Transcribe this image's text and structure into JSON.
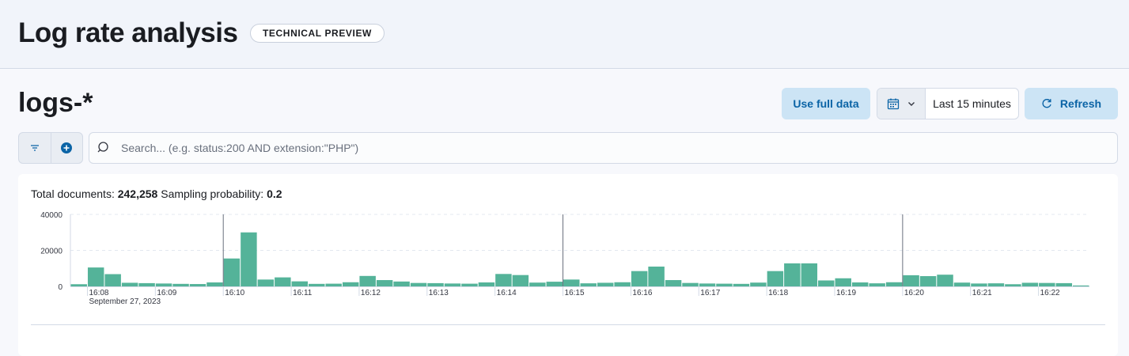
{
  "header": {
    "title": "Log rate analysis",
    "badge": "TECHNICAL PREVIEW"
  },
  "index_title": "logs-*",
  "toolbar": {
    "use_full_data_label": "Use full data",
    "date_range_label": "Last 15 minutes",
    "refresh_label": "Refresh",
    "calendar_icon": "calendar-icon",
    "refresh_icon": "refresh-icon"
  },
  "search": {
    "placeholder": "Search... (e.g. status:200 AND extension:\"PHP\")",
    "value": ""
  },
  "summary": {
    "total_label": "Total documents:",
    "total_value": "242,258",
    "sampling_label": "Sampling probability:",
    "sampling_value": "0.2"
  },
  "colors": {
    "bar": "#54b399",
    "accent": "#0b64a6",
    "button_bg": "#cce4f5"
  },
  "chart_data": {
    "type": "bar",
    "y_ticks": [
      "40000",
      "20000",
      "0"
    ],
    "ylim": [
      0,
      40000
    ],
    "x_tick_labels": [
      "16:08",
      "16:09",
      "16:10",
      "16:11",
      "16:12",
      "16:13",
      "16:14",
      "16:15",
      "16:16",
      "16:17",
      "16:18",
      "16:19",
      "16:20",
      "16:21",
      "16:22"
    ],
    "date_label": "September 27, 2023",
    "marker_times": [
      "16:10",
      "16:15",
      "16:20"
    ],
    "bar_interval_seconds": 15,
    "start_time": "16:07:45",
    "values": [
      1200,
      10500,
      6800,
      2000,
      1800,
      1600,
      1400,
      1300,
      2200,
      15500,
      30000,
      3800,
      5000,
      2800,
      1400,
      1500,
      2300,
      5800,
      3500,
      2700,
      1900,
      1800,
      1600,
      1500,
      2200,
      6900,
      6300,
      2100,
      2600,
      3800,
      1700,
      2000,
      2300,
      8500,
      11000,
      3500,
      1900,
      1600,
      1500,
      1400,
      2100,
      8500,
      12800,
      12800,
      3300,
      4500,
      2200,
      1700,
      2300,
      6200,
      5700,
      6500,
      2100,
      1600,
      1700,
      1200,
      2000,
      1900,
      1800,
      500
    ],
    "grid": true
  }
}
